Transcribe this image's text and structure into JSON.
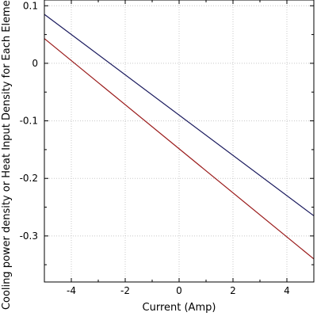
{
  "chart_data": {
    "type": "line",
    "xlabel": "Current (Amp)",
    "ylabel": "Cooling power density or Heat Input Density for Each Element (W",
    "xlim": [
      -5,
      5
    ],
    "ylim": [
      -0.38,
      0.11
    ],
    "xticks": [
      -4,
      -2,
      0,
      2,
      4
    ],
    "xtick_labels": [
      "-4",
      "-2",
      "0",
      "2",
      "4"
    ],
    "yticks": [
      0.1,
      0,
      -0.1,
      -0.2,
      -0.3
    ],
    "ytick_labels": [
      "0.1",
      "0",
      "-0.1",
      "-0.2",
      "-0.3"
    ],
    "grid": true,
    "series": [
      {
        "color": "#1a1a5e",
        "x": [
          -5,
          5
        ],
        "y": [
          0.085,
          -0.265
        ]
      },
      {
        "color": "#9a1a1a",
        "x": [
          -5,
          5
        ],
        "y": [
          0.043,
          -0.34
        ]
      }
    ]
  }
}
